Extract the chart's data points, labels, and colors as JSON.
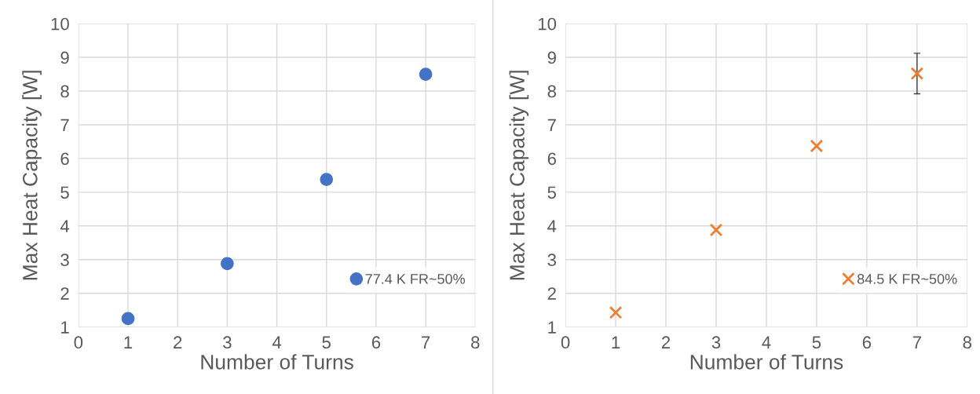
{
  "chart_data": [
    {
      "type": "scatter",
      "xlabel": "Number of Turns",
      "ylabel": "Max Heat Capacity [W]",
      "xlim": [
        0,
        8
      ],
      "xticks": [
        0,
        1,
        2,
        3,
        4,
        5,
        6,
        7,
        8
      ],
      "ylim": [
        1,
        10
      ],
      "yticks": [
        1,
        2,
        3,
        4,
        5,
        6,
        7,
        8,
        9,
        10
      ],
      "grid": true,
      "legend": "bottom right",
      "marker": "circle",
      "series": [
        {
          "name": "77.4 K FR~50%",
          "color": "#4472c4",
          "x": [
            1,
            3,
            5,
            7
          ],
          "values": [
            1.25,
            2.88,
            5.38,
            8.5
          ]
        }
      ]
    },
    {
      "type": "scatter",
      "xlabel": "Number of Turns",
      "ylabel": "Max Heat Capacity [W]",
      "xlim": [
        0,
        8
      ],
      "xticks": [
        0,
        1,
        2,
        3,
        4,
        5,
        6,
        7,
        8
      ],
      "ylim": [
        1,
        10
      ],
      "yticks": [
        1,
        2,
        3,
        4,
        5,
        6,
        7,
        8,
        9,
        10
      ],
      "grid": true,
      "legend": "bottom right",
      "marker": "cross",
      "series": [
        {
          "name": "84.5 K FR~50%",
          "color": "#ed7d31",
          "x": [
            1,
            3,
            5,
            7
          ],
          "values": [
            1.43,
            3.88,
            6.37,
            8.52
          ],
          "errors": [
            null,
            null,
            null,
            0.6
          ]
        }
      ]
    }
  ]
}
